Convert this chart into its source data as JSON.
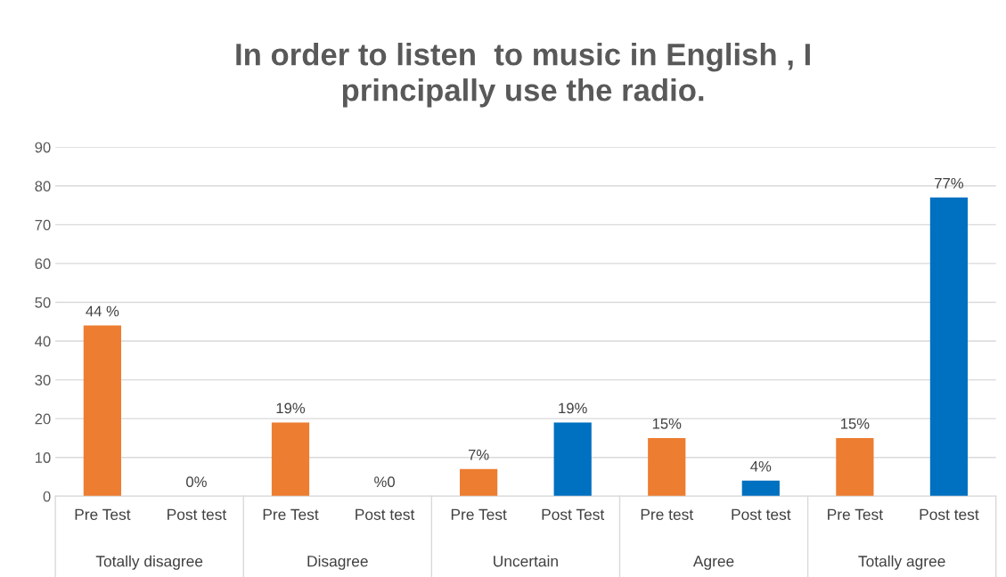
{
  "chart_data": {
    "type": "bar",
    "title": "In order to listen  to music in English , I\nprincipally use the radio.",
    "categories": [
      "Pre Test",
      "Post test",
      "Pre Test",
      "Post test",
      "Pre Test",
      "Post Test",
      "Pre test",
      "Post test",
      "Pre Test",
      "Post test"
    ],
    "values": [
      44,
      0,
      19,
      0,
      7,
      19,
      15,
      4,
      15,
      77
    ],
    "colors": [
      "#ed7d31",
      "#0070c0",
      "#ed7d31",
      "#0070c0",
      "#ed7d31",
      "#0070c0",
      "#ed7d31",
      "#0070c0",
      "#ed7d31",
      "#0070c0"
    ],
    "value_labels": [
      "44 %",
      "0%",
      "19%",
      "%0",
      "7%",
      "19%",
      "15%",
      "4%",
      "15%",
      "77%"
    ],
    "annotations": [
      "Totally disagree",
      "Disagree",
      "Uncertain",
      "Agree",
      "Totally agree"
    ],
    "ylim": [
      0,
      90
    ],
    "yticks": [
      0,
      10,
      20,
      30,
      40,
      50,
      60,
      70,
      80,
      90
    ],
    "grid": "y",
    "legend": false
  }
}
